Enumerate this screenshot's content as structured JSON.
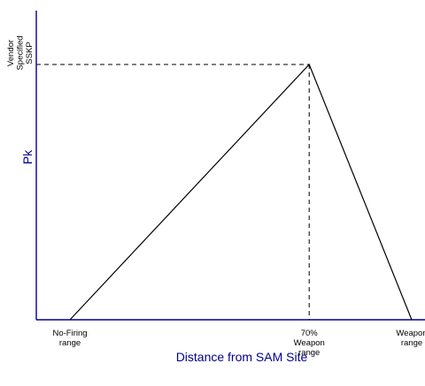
{
  "chart_data": {
    "type": "line",
    "title": "",
    "xlabel": "Distance from SAM Site",
    "ylabel": "Pk",
    "x_tick_labels": [
      [
        "No-Firing",
        "range"
      ],
      [
        "70%",
        "Weapon",
        "range"
      ],
      [
        "Weapon",
        "range"
      ]
    ],
    "x": [
      0,
      0.7,
      1.0
    ],
    "series": [
      {
        "values": [
          0,
          1,
          0
        ]
      }
    ],
    "y_marker_label": [
      "Vendor",
      "Specified",
      "SSKP"
    ],
    "y_marker_value": 1,
    "guides": "dashed lines from the peak to the y-axis and down to the x-axis",
    "grid": false,
    "axis_color": "#00008b",
    "line_color": "#000000"
  }
}
